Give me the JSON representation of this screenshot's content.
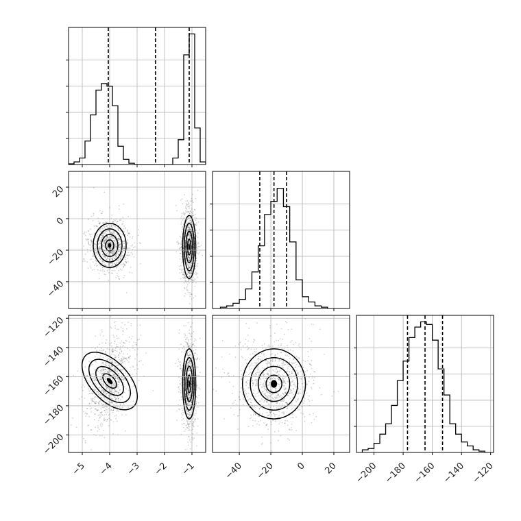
{
  "chart_data": {
    "type": "corner",
    "title": "",
    "parameters": 3,
    "grid": true,
    "panels": [
      {
        "kind": "hist",
        "row": 0,
        "col": 0,
        "xlim": [
          -5.5,
          -0.5
        ],
        "xticks": [
          -5,
          -4,
          -3,
          -2,
          -1
        ],
        "quantiles": [
          -4.05,
          -2.33,
          -1.1
        ],
        "bin_edges": [
          -5.5,
          -5.3,
          -5.1,
          -4.9,
          -4.7,
          -4.5,
          -4.3,
          -4.1,
          -3.9,
          -3.7,
          -3.5,
          -3.3,
          -3.1,
          -2.9,
          -2.7,
          -2.5,
          -2.3,
          -2.1,
          -1.9,
          -1.7,
          -1.5,
          -1.3,
          -1.1,
          -0.9,
          -0.7,
          -0.5
        ],
        "counts": [
          0.005,
          0.02,
          0.05,
          0.18,
          0.38,
          0.57,
          0.62,
          0.6,
          0.45,
          0.14,
          0.04,
          0.01,
          0,
          0,
          0,
          0,
          0,
          0,
          0,
          0.05,
          0.19,
          0.84,
          1.0,
          0.28,
          0.02
        ],
        "ylim": [
          0,
          1.05
        ],
        "yticks": [
          0.2,
          0.4,
          0.6,
          0.8
        ]
      },
      {
        "kind": "scatter",
        "row": 1,
        "col": 0,
        "xlim": [
          -5.5,
          -0.5
        ],
        "ylim": [
          -57,
          30
        ],
        "xticks": [
          -5,
          -4,
          -3,
          -2,
          -1
        ],
        "yticks": [
          -40,
          -20,
          0,
          20
        ],
        "ytick_labels": [
          "−40",
          "−20",
          "0",
          "20"
        ],
        "blobs": [
          {
            "cx": -4.0,
            "cy": -17,
            "sx": 0.3,
            "sy": 7
          },
          {
            "cx": -1.1,
            "cy": -18,
            "sx": 0.12,
            "sy": 10
          }
        ]
      },
      {
        "kind": "hist",
        "row": 1,
        "col": 1,
        "xlim": [
          -57,
          30
        ],
        "xticks": [
          -40,
          -20,
          0,
          20
        ],
        "quantiles": [
          -27,
          -18,
          -10
        ],
        "bin_edges": [
          -52,
          -48,
          -44,
          -40,
          -36,
          -32,
          -28,
          -24,
          -20,
          -16,
          -12,
          -8,
          -4,
          0,
          4,
          8,
          12,
          16
        ],
        "counts": [
          0.01,
          0.02,
          0.04,
          0.07,
          0.15,
          0.28,
          0.48,
          0.72,
          0.82,
          0.92,
          0.78,
          0.51,
          0.22,
          0.09,
          0.05,
          0.02,
          0.01
        ],
        "ylim": [
          0,
          1.05
        ],
        "yticks": [
          0.2,
          0.4,
          0.6,
          0.8
        ]
      },
      {
        "kind": "scatter",
        "row": 2,
        "col": 0,
        "xlim": [
          -5.5,
          -0.5
        ],
        "ylim": [
          -212,
          -118
        ],
        "xticks": [
          -5,
          -4,
          -3,
          -2,
          -1
        ],
        "xtick_labels": [
          "−5",
          "−4",
          "−3",
          "−2",
          "−1"
        ],
        "yticks": [
          -200,
          -180,
          -160,
          -140,
          -120
        ],
        "ytick_labels": [
          "−200",
          "−180",
          "−160",
          "−140",
          "−120"
        ],
        "blobs": [
          {
            "cx": -4.0,
            "cy": -163,
            "sx": 0.35,
            "sy": 12,
            "tilt": 0.6
          },
          {
            "cx": -1.1,
            "cy": -165,
            "sx": 0.12,
            "sy": 12
          }
        ]
      },
      {
        "kind": "scatter",
        "row": 2,
        "col": 1,
        "xlim": [
          -57,
          30
        ],
        "ylim": [
          -212,
          -118
        ],
        "xticks": [
          -40,
          -20,
          0,
          20
        ],
        "xtick_labels": [
          "−40",
          "−20",
          "0",
          "20"
        ],
        "blobs": [
          {
            "cx": -18,
            "cy": -165,
            "sx": 10,
            "sy": 12
          }
        ]
      },
      {
        "kind": "hist",
        "row": 2,
        "col": 2,
        "xlim": [
          -212,
          -118
        ],
        "xticks": [
          -200,
          -180,
          -160,
          -140,
          -120
        ],
        "xtick_labels": [
          "−200",
          "−180",
          "−160",
          "−140",
          "−120"
        ],
        "quantiles": [
          -177,
          -165,
          -153
        ],
        "bin_edges": [
          -208,
          -204,
          -200,
          -196,
          -192,
          -188,
          -184,
          -180,
          -176,
          -172,
          -168,
          -164,
          -160,
          -156,
          -152,
          -148,
          -144,
          -140,
          -136,
          -132,
          -128,
          -124
        ],
        "counts": [
          0.02,
          0.03,
          0.07,
          0.14,
          0.22,
          0.36,
          0.55,
          0.7,
          0.88,
          0.96,
          1.0,
          0.98,
          0.86,
          0.64,
          0.44,
          0.22,
          0.14,
          0.08,
          0.05,
          0.02,
          0.01
        ],
        "ylim": [
          0,
          1.05
        ],
        "yticks": [
          0.2,
          0.4,
          0.6,
          0.8
        ]
      }
    ]
  }
}
